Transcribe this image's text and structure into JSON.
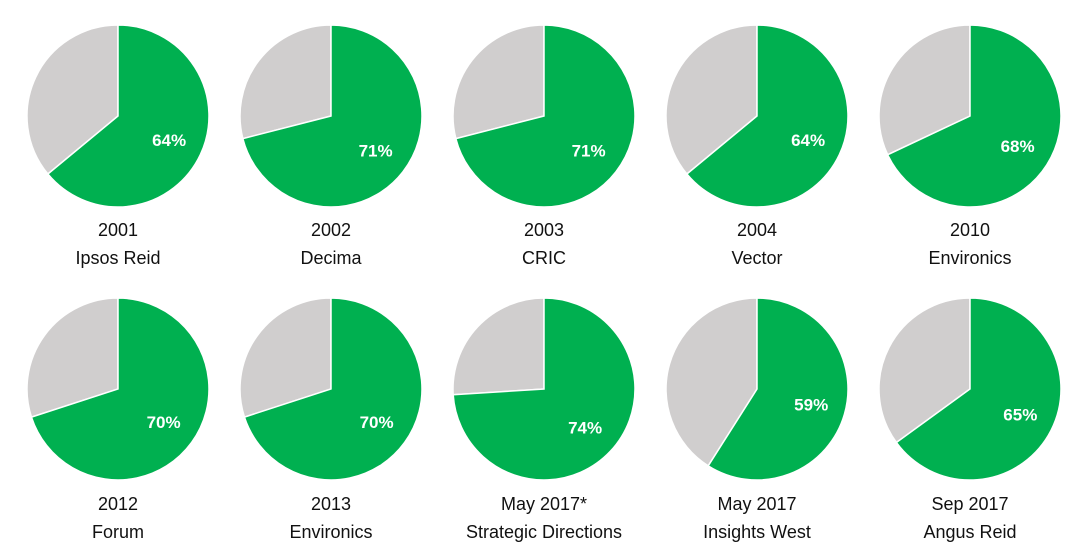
{
  "chart_data": {
    "type": "pie",
    "title": "",
    "colors": {
      "share": "#00b050",
      "remainder": "#d0cece",
      "label": "#ffffff",
      "caption": "#111111"
    },
    "pies": [
      {
        "year": "2001",
        "pollster": "Ipsos Reid",
        "value": 64,
        "label": "64%"
      },
      {
        "year": "2002",
        "pollster": "Decima",
        "value": 71,
        "label": "71%"
      },
      {
        "year": "2003",
        "pollster": "CRIC",
        "value": 71,
        "label": "71%"
      },
      {
        "year": "2004",
        "pollster": "Vector",
        "value": 64,
        "label": "64%"
      },
      {
        "year": "2010",
        "pollster": "Environics",
        "value": 68,
        "label": "68%"
      },
      {
        "year": "2012",
        "pollster": "Forum",
        "value": 70,
        "label": "70%"
      },
      {
        "year": "2013",
        "pollster": "Environics",
        "value": 70,
        "label": "70%"
      },
      {
        "year": "May 2017*",
        "pollster": "Strategic Directions",
        "value": 74,
        "label": "74%"
      },
      {
        "year": "May 2017",
        "pollster": "Insights West",
        "value": 59,
        "label": "59%"
      },
      {
        "year": "Sep 2017",
        "pollster": "Angus Reid",
        "value": 65,
        "label": "65%"
      }
    ]
  }
}
